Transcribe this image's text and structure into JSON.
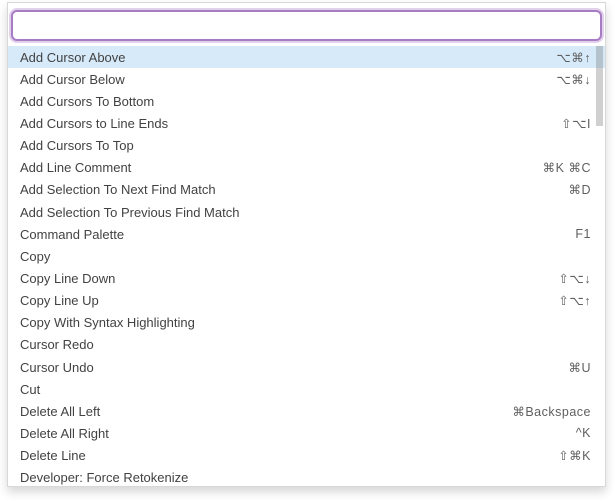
{
  "widget": {
    "kind": "command-palette"
  },
  "search": {
    "value": "",
    "placeholder": ""
  },
  "colors": {
    "input_border": "#a87cc5",
    "selected_row_bg": "#d6eafa",
    "label_text": "#424242",
    "keybinding_text": "#5f5f5f",
    "widget_border": "#d8d8d8",
    "scrollbar_thumb": "rgba(110,110,110,0.32)"
  },
  "list": {
    "items": [
      {
        "label": "Add Cursor Above",
        "shortcut": "⌥⌘↑",
        "selected": true
      },
      {
        "label": "Add Cursor Below",
        "shortcut": "⌥⌘↓",
        "selected": false
      },
      {
        "label": "Add Cursors To Bottom",
        "shortcut": "",
        "selected": false
      },
      {
        "label": "Add Cursors to Line Ends",
        "shortcut": "⇧⌥I",
        "selected": false
      },
      {
        "label": "Add Cursors To Top",
        "shortcut": "",
        "selected": false
      },
      {
        "label": "Add Line Comment",
        "shortcut": "⌘K ⌘C",
        "selected": false
      },
      {
        "label": "Add Selection To Next Find Match",
        "shortcut": "⌘D",
        "selected": false
      },
      {
        "label": "Add Selection To Previous Find Match",
        "shortcut": "",
        "selected": false
      },
      {
        "label": "Command Palette",
        "shortcut": "F1",
        "selected": false
      },
      {
        "label": "Copy",
        "shortcut": "",
        "selected": false
      },
      {
        "label": "Copy Line Down",
        "shortcut": "⇧⌥↓",
        "selected": false
      },
      {
        "label": "Copy Line Up",
        "shortcut": "⇧⌥↑",
        "selected": false
      },
      {
        "label": "Copy With Syntax Highlighting",
        "shortcut": "",
        "selected": false
      },
      {
        "label": "Cursor Redo",
        "shortcut": "",
        "selected": false
      },
      {
        "label": "Cursor Undo",
        "shortcut": "⌘U",
        "selected": false
      },
      {
        "label": "Cut",
        "shortcut": "",
        "selected": false
      },
      {
        "label": "Delete All Left",
        "shortcut": "⌘Backspace",
        "selected": false
      },
      {
        "label": "Delete All Right",
        "shortcut": "^K",
        "selected": false
      },
      {
        "label": "Delete Line",
        "shortcut": "⇧⌘K",
        "selected": false
      },
      {
        "label": "Developer: Force Retokenize",
        "shortcut": "",
        "selected": false
      }
    ]
  }
}
